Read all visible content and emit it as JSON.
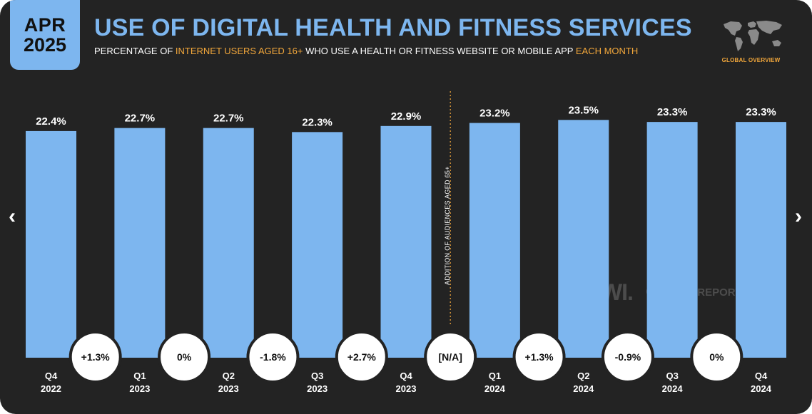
{
  "header": {
    "date_month": "APR",
    "date_year": "2025",
    "title": "USE OF DIGITAL HEALTH AND FITNESS SERVICES",
    "subtitle_parts": [
      {
        "text": "PERCENTAGE OF ",
        "highlight": false
      },
      {
        "text": "INTERNET USERS AGED 16+",
        "highlight": true
      },
      {
        "text": " WHO USE A HEALTH OR FITNESS WEBSITE OR MOBILE APP ",
        "highlight": false
      },
      {
        "text": "EACH MONTH",
        "highlight": true
      }
    ],
    "badge_label": "GLOBAL OVERVIEW"
  },
  "colors": {
    "background": "#232323",
    "bar": "#7db6ef",
    "accent": "#f2a73b",
    "circle": "#ffffff",
    "text": "#ffffff"
  },
  "navigation": {
    "prev_icon": "chevron-left-icon",
    "next_icon": "chevron-right-icon"
  },
  "watermark": {
    "gwi": "GWI.",
    "datareportal": "DATAREPORTAL"
  },
  "chart_data": {
    "type": "bar",
    "title": "USE OF DIGITAL HEALTH AND FITNESS SERVICES",
    "categories": [
      [
        "Q4",
        "2022"
      ],
      [
        "Q1",
        "2023"
      ],
      [
        "Q2",
        "2023"
      ],
      [
        "Q3",
        "2023"
      ],
      [
        "Q4",
        "2023"
      ],
      [
        "Q1",
        "2024"
      ],
      [
        "Q2",
        "2024"
      ],
      [
        "Q3",
        "2024"
      ],
      [
        "Q4",
        "2024"
      ]
    ],
    "values": [
      22.4,
      22.7,
      22.7,
      22.3,
      22.9,
      23.2,
      23.5,
      23.3,
      23.3
    ],
    "value_labels": [
      "22.4%",
      "22.7%",
      "22.7%",
      "22.3%",
      "22.9%",
      "23.2%",
      "23.5%",
      "23.3%",
      "23.3%"
    ],
    "changes": [
      "+1.3%",
      "0%",
      "-1.8%",
      "+2.7%",
      "[N/A]",
      "+1.3%",
      "-0.9%",
      "0%"
    ],
    "annotation": {
      "text": "ADDITION OF AUDIENCES AGED 65+",
      "between_categories": [
        4,
        5
      ]
    },
    "unit": "%"
  }
}
